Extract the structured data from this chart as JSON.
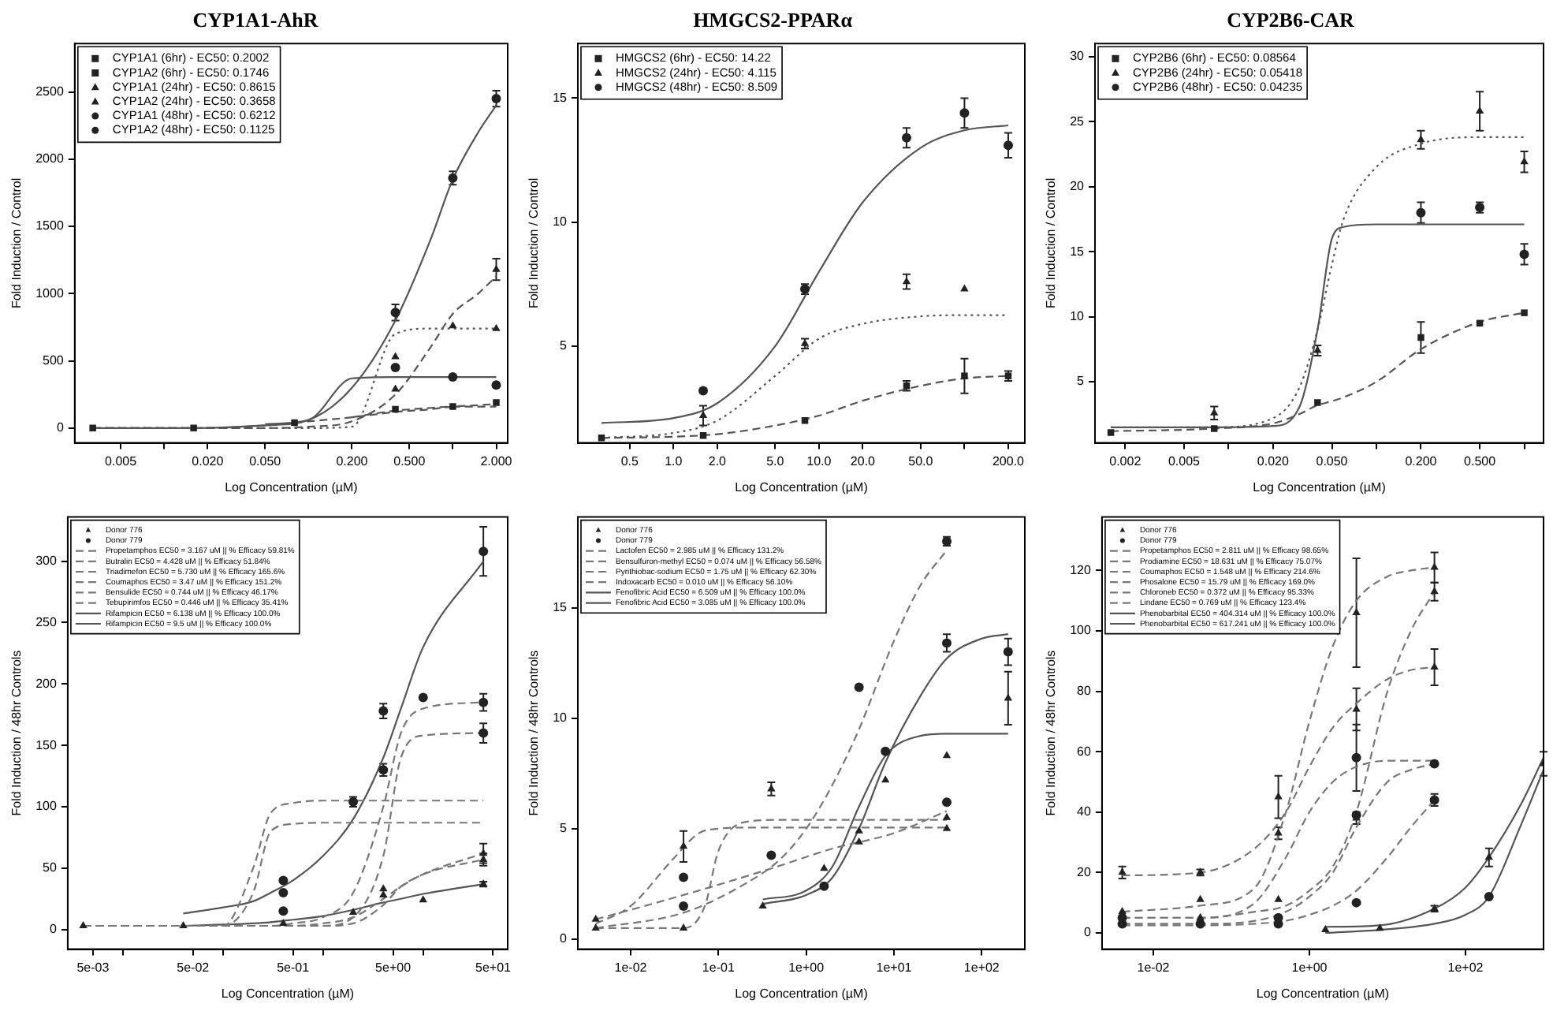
{
  "chart_data": [
    {
      "type": "scatter",
      "title": "CYP1A1-AhR",
      "xlabel": "Log Concentration (µM)",
      "ylabel": "Fold Induction / Control",
      "log": "x",
      "legend": "top left",
      "xlim": [
        0.0024,
        2.4
      ],
      "ylim": [
        -110,
        2860
      ],
      "yticks": [
        0,
        500,
        1000,
        1500,
        2000,
        2500
      ],
      "xticks": [
        {
          "value": 0.005,
          "label": "0.005"
        },
        {
          "value": 0.01,
          "label": null
        },
        {
          "value": 0.02,
          "label": "0.020"
        },
        {
          "value": 0.05,
          "label": "0.050"
        },
        {
          "value": 0.1,
          "label": null
        },
        {
          "value": 0.2,
          "label": "0.200"
        },
        {
          "value": 0.5,
          "label": "0.500"
        },
        {
          "value": 1,
          "label": null
        },
        {
          "value": 2,
          "label": "2.000"
        }
      ],
      "series": [
        {
          "name": "CYP1A1 (6hr) - EC50: 0.2002",
          "marker": "square",
          "color": "#222222",
          "x": [
            0.0032,
            0.016,
            0.08,
            1,
            2
          ],
          "values": [
            0,
            0,
            40,
            160,
            190
          ]
        },
        {
          "name": "CYP1A2 (6hr) - EC50: 0.1746",
          "marker": "square",
          "color": "#222222",
          "x": [
            0.4
          ],
          "values": [
            140
          ]
        },
        {
          "name": "CYP1A1 (24hr) - EC50: 0.8615",
          "marker": "triangle",
          "color": "#222222",
          "x": [
            0.4,
            2
          ],
          "values": [
            290,
            1180
          ],
          "errors": [
            null,
            80
          ]
        },
        {
          "name": "CYP1A2 (24hr) - EC50: 0.3658",
          "marker": "triangle",
          "color": "#222222",
          "x": [
            0.4,
            1,
            2
          ],
          "values": [
            530,
            760,
            740
          ]
        },
        {
          "name": "CYP1A1 (48hr) - EC50: 0.6212",
          "marker": "circle",
          "color": "#222222",
          "x": [
            0.4,
            1,
            2
          ],
          "values": [
            860,
            1860,
            2450
          ],
          "errors": [
            60,
            50,
            60
          ]
        },
        {
          "name": "CYP1A2 (48hr) - EC50: 0.1125",
          "marker": "circle",
          "color": "#222222",
          "x": [
            0.4,
            1,
            2
          ],
          "values": [
            450,
            380,
            320
          ]
        },
        {
          "type": "line",
          "line_style": "dashed",
          "marker": "none",
          "color": "#555555",
          "x": [
            0.0032,
            0.016,
            0.05,
            0.1,
            0.2,
            0.4,
            0.7,
            1,
            1.5,
            2
          ],
          "values": [
            0,
            0,
            20,
            50,
            80,
            120,
            140,
            160,
            170,
            180
          ]
        },
        {
          "type": "line",
          "line_style": "dashed",
          "marker": "none",
          "color": "#555555",
          "x": [
            0.2,
            0.4,
            0.7,
            1,
            1.5,
            2
          ],
          "values": [
            80,
            130,
            150,
            160,
            160,
            160
          ]
        },
        {
          "type": "line",
          "line_style": "dashed",
          "marker": "none",
          "color": "#555555",
          "x": [
            0.0032,
            0.016,
            0.05,
            0.1,
            0.2,
            0.4,
            0.7,
            1,
            1.5,
            2
          ],
          "values": [
            0,
            0,
            0,
            10,
            50,
            250,
            600,
            850,
            1000,
            1130
          ]
        },
        {
          "type": "line",
          "line_style": "dotted",
          "marker": "none",
          "color": "#555555",
          "x": [
            0.0032,
            0.016,
            0.05,
            0.1,
            0.2,
            0.4,
            0.7,
            1,
            1.5,
            2
          ],
          "values": [
            0,
            0,
            0,
            0,
            10,
            700,
            740,
            740,
            740,
            740
          ]
        },
        {
          "type": "line",
          "line_style": "solid",
          "marker": "none",
          "color": "#555555",
          "x": [
            0.0032,
            0.016,
            0.05,
            0.1,
            0.2,
            0.4,
            0.7,
            1,
            1.5,
            2
          ],
          "values": [
            0,
            0,
            20,
            60,
            300,
            800,
            1400,
            1850,
            2200,
            2400
          ]
        },
        {
          "type": "line",
          "line_style": "solid",
          "marker": "none",
          "color": "#555555",
          "x": [
            0.05,
            0.1,
            0.2,
            0.4,
            0.7,
            1,
            1.5,
            2
          ],
          "values": [
            30,
            60,
            370,
            380,
            380,
            380,
            380,
            380
          ]
        }
      ]
    },
    {
      "type": "scatter",
      "title": "HMGCS2-PPARα",
      "xlabel": "Log Concentration (µM)",
      "ylabel": "Fold Induction / Control",
      "log": "x",
      "legend": "top left",
      "xlim": [
        0.22,
        260
      ],
      "ylim": [
        1.1,
        17.2
      ],
      "yticks": [
        5,
        10,
        15
      ],
      "xticks": [
        {
          "value": 0.5,
          "label": "0.5"
        },
        {
          "value": 1,
          "label": "1.0"
        },
        {
          "value": 2,
          "label": "2.0"
        },
        {
          "value": 5,
          "label": "5.0"
        },
        {
          "value": 10,
          "label": "10.0"
        },
        {
          "value": 20,
          "label": "20.0"
        },
        {
          "value": 50,
          "label": "50.0"
        },
        {
          "value": 100,
          "label": null
        },
        {
          "value": 200,
          "label": "200.0"
        }
      ],
      "series": [
        {
          "name": "HMGCS2 (6hr) - EC50: 14.22",
          "marker": "square",
          "color": "#222222",
          "x": [
            0.32,
            1.6,
            8,
            40,
            100,
            200
          ],
          "values": [
            1.3,
            1.4,
            2.0,
            3.4,
            3.8,
            3.8
          ],
          "errors": [
            null,
            null,
            null,
            0.2,
            0.7,
            0.2
          ]
        },
        {
          "name": "HMGCS2 (24hr) - EC50: 4.115",
          "marker": "triangle",
          "color": "#222222",
          "x": [
            1.6,
            8,
            40,
            100
          ],
          "values": [
            2.2,
            5.1,
            7.6,
            7.3
          ],
          "errors": [
            0.4,
            0.2,
            0.3,
            null
          ]
        },
        {
          "name": "HMGCS2 (48hr) - EC50: 8.509",
          "marker": "circle",
          "color": "#222222",
          "x": [
            1.6,
            8,
            40,
            100,
            200
          ],
          "values": [
            3.2,
            7.3,
            13.4,
            14.4,
            13.1
          ],
          "errors": [
            null,
            0.2,
            0.4,
            0.6,
            0.5
          ]
        },
        {
          "type": "line",
          "line_style": "dashed",
          "marker": "none",
          "color": "#555555",
          "x": [
            0.32,
            1,
            2,
            5,
            10,
            20,
            50,
            100,
            200
          ],
          "values": [
            1.3,
            1.35,
            1.45,
            1.8,
            2.2,
            2.8,
            3.4,
            3.7,
            3.8
          ]
        },
        {
          "type": "line",
          "line_style": "dotted",
          "marker": "none",
          "color": "#555555",
          "x": [
            0.32,
            1,
            2,
            5,
            10,
            20,
            50,
            100,
            200
          ],
          "values": [
            1.3,
            1.5,
            2,
            3.8,
            5.3,
            5.9,
            6.2,
            6.25,
            6.25
          ]
        },
        {
          "type": "line",
          "line_style": "solid",
          "marker": "none",
          "color": "#555555",
          "x": [
            0.32,
            1,
            2,
            5,
            10,
            20,
            50,
            100,
            200
          ],
          "values": [
            1.9,
            2.1,
            2.7,
            5,
            8,
            10.8,
            13,
            13.7,
            13.9
          ]
        }
      ]
    },
    {
      "type": "scatter",
      "title": "CYP2B6-CAR",
      "xlabel": "Log Concentration (µM)",
      "ylabel": "Fold Induction / Control",
      "log": "x",
      "legend": "top left",
      "xlim": [
        0.00125,
        1.35
      ],
      "ylim": [
        0.3,
        31
      ],
      "yticks": [
        5,
        10,
        15,
        20,
        25,
        30
      ],
      "xticks": [
        {
          "value": 0.002,
          "label": "0.002"
        },
        {
          "value": 0.005,
          "label": "0.005"
        },
        {
          "value": 0.01,
          "label": null
        },
        {
          "value": 0.02,
          "label": "0.020"
        },
        {
          "value": 0.05,
          "label": "0.050"
        },
        {
          "value": 0.1,
          "label": null
        },
        {
          "value": 0.2,
          "label": "0.200"
        },
        {
          "value": 0.5,
          "label": "0.500"
        },
        {
          "value": 1,
          "label": null
        }
      ],
      "series": [
        {
          "name": "CYP2B6 (6hr) - EC50: 0.08564",
          "marker": "square",
          "color": "#222222",
          "x": [
            0.0016,
            0.008,
            0.04,
            0.2,
            0.5,
            1
          ],
          "values": [
            1.1,
            1.4,
            3.4,
            8.4,
            9.5,
            10.3
          ],
          "errors": [
            null,
            null,
            null,
            1.2,
            null,
            null
          ]
        },
        {
          "name": "CYP2B6 (24hr) - EC50: 0.05418",
          "marker": "triangle",
          "color": "#222222",
          "x": [
            0.008,
            0.04,
            0.2,
            0.5,
            1
          ],
          "values": [
            2.6,
            7.4,
            23.6,
            25.8,
            21.9
          ],
          "errors": [
            0.5,
            0.4,
            0.7,
            1.5,
            0.8
          ]
        },
        {
          "name": "CYP2B6 (48hr) - EC50: 0.04235",
          "marker": "circle",
          "color": "#222222",
          "x": [
            0.2,
            0.5,
            1
          ],
          "values": [
            18.0,
            18.4,
            14.8
          ],
          "errors": [
            0.8,
            0.4,
            0.8
          ]
        },
        {
          "type": "line",
          "line_style": "dashed",
          "marker": "none",
          "color": "#555555",
          "x": [
            0.0016,
            0.008,
            0.02,
            0.03,
            0.04,
            0.05,
            0.06,
            0.1,
            0.2,
            0.5,
            1
          ],
          "values": [
            1.2,
            1.4,
            1.8,
            2.5,
            3.2,
            3.5,
            3.8,
            5,
            7.5,
            9.6,
            10.3
          ]
        },
        {
          "type": "line",
          "line_style": "dotted",
          "marker": "none",
          "color": "#555555",
          "x": [
            0.0016,
            0.008,
            0.02,
            0.03,
            0.04,
            0.05,
            0.06,
            0.1,
            0.2,
            0.5,
            1
          ],
          "values": [
            1.5,
            1.5,
            2.2,
            4.5,
            9,
            14,
            17.5,
            21.5,
            23.3,
            23.8,
            23.8
          ]
        },
        {
          "type": "line",
          "line_style": "solid",
          "marker": "none",
          "color": "#555555",
          "x": [
            0.0016,
            0.008,
            0.02,
            0.03,
            0.04,
            0.05,
            0.06,
            0.1,
            0.2,
            0.5,
            1
          ],
          "values": [
            1.5,
            1.5,
            1.6,
            3,
            9,
            16,
            16.9,
            17.1,
            17.1,
            17.1,
            17.1
          ]
        }
      ]
    },
    {
      "type": "scatter",
      "xlabel": "Log Concentration (µM)",
      "ylabel": "Fold Induction / 48hr Controls",
      "log": "x",
      "legend": "top left",
      "xlim": [
        0.0028,
        70
      ],
      "ylim": [
        -16,
        336
      ],
      "yticks": [
        0,
        50,
        100,
        150,
        200,
        250,
        300
      ],
      "xticks": [
        {
          "value": 0.005,
          "label": "5e-03"
        },
        {
          "value": 0.01,
          "label": null
        },
        {
          "value": 0.05,
          "label": "5e-02"
        },
        {
          "value": 0.1,
          "label": null
        },
        {
          "value": 0.5,
          "label": "5e-01"
        },
        {
          "value": 1,
          "label": null
        },
        {
          "value": 5,
          "label": "5e+00"
        },
        {
          "value": 10,
          "label": null
        },
        {
          "value": 50,
          "label": "5e+01"
        }
      ],
      "series": [
        {
          "name": "Donor 776",
          "marker": "triangle",
          "color": "#222222",
          "x": [
            0.004,
            0.04,
            0.4,
            4,
            40,
            4,
            40,
            2,
            10,
            40
          ],
          "values": [
            3,
            3,
            5,
            33,
            62,
            28,
            57,
            14,
            24,
            37
          ],
          "errors": [
            null,
            null,
            null,
            null,
            8,
            null,
            5,
            null,
            null,
            2
          ]
        },
        {
          "name": "Donor 779",
          "marker": "circle",
          "color": "#222222",
          "x": [
            0.4,
            4,
            40,
            4,
            40,
            0.4,
            2,
            0.4,
            10,
            40
          ],
          "values": [
            15,
            178,
            185,
            130,
            160,
            30,
            104,
            40,
            189,
            308
          ],
          "errors": [
            null,
            6,
            7,
            5,
            8,
            null,
            4,
            null,
            null,
            20
          ]
        },
        {
          "name": "Propetamphos EC50 = 3.167 uM || % Efficacy 59.81%",
          "type": "line",
          "line_style": "dashed",
          "marker": "none",
          "color": "#777777",
          "x": [
            0.004,
            0.04,
            0.1,
            0.2,
            0.3,
            0.5,
            1,
            2,
            4,
            6,
            10,
            40
          ],
          "values": [
            3,
            3,
            3,
            3,
            3,
            5,
            10,
            30,
            100,
            160,
            180,
            185
          ]
        },
        {
          "name": "Butralin EC50 = 4.428 uM || % Efficacy 51.84%",
          "type": "line",
          "line_style": "dashed",
          "marker": "none",
          "color": "#777777",
          "x": [
            0.004,
            0.04,
            0.1,
            0.2,
            0.3,
            0.5,
            1,
            2,
            4,
            6,
            10,
            40
          ],
          "values": [
            3,
            3,
            3,
            3,
            3,
            3,
            3,
            10,
            60,
            140,
            158,
            160
          ]
        },
        {
          "name": "Triadimefon EC50 = 5.730 uM || % Efficacy 165.6%",
          "type": "line",
          "line_style": "dashed",
          "marker": "none",
          "color": "#777777",
          "x": [
            0.004,
            0.04,
            0.1,
            0.2,
            0.3,
            0.5,
            1,
            2,
            4,
            6,
            10,
            40
          ],
          "values": [
            3,
            3,
            3,
            3,
            3,
            3,
            3,
            5,
            20,
            35,
            45,
            62
          ]
        },
        {
          "name": "Coumaphos EC50 = 3.47 uM || % Efficacy 151.2%",
          "type": "line",
          "line_style": "dashed",
          "marker": "none",
          "color": "#777777",
          "x": [
            0.004,
            0.04,
            0.1,
            0.2,
            0.3,
            0.5,
            1,
            2,
            4,
            6,
            10,
            40
          ],
          "values": [
            3,
            3,
            3,
            3,
            3,
            3,
            5,
            10,
            25,
            35,
            45,
            57
          ]
        },
        {
          "name": "Bensulide EC50 = 0.744 uM || % Efficacy 46.17%",
          "type": "line",
          "line_style": "dashed",
          "marker": "none",
          "color": "#777777",
          "x": [
            0.004,
            0.04,
            0.1,
            0.2,
            0.3,
            0.5,
            1,
            2,
            4,
            6,
            10,
            40
          ],
          "values": [
            3,
            3,
            3,
            50,
            95,
            103,
            105,
            105,
            105,
            105,
            105,
            105
          ]
        },
        {
          "name": "Tebupirimfos EC50 = 0.446 uM || % Efficacy 35.41%",
          "type": "line",
          "line_style": "dashed",
          "marker": "none",
          "color": "#777777",
          "x": [
            0.004,
            0.04,
            0.1,
            0.2,
            0.3,
            0.5,
            1,
            2,
            4,
            6,
            10,
            40
          ],
          "values": [
            3,
            3,
            3,
            30,
            80,
            86,
            87,
            87,
            87,
            87,
            87,
            87
          ]
        },
        {
          "name": "Rifampicin EC50 = 6.138 uM || % Efficacy 100.0%",
          "type": "line",
          "line_style": "solid",
          "marker": "none",
          "color": "#555555",
          "x": [
            0.04,
            0.1,
            0.2,
            0.3,
            0.5,
            1,
            2,
            4,
            6,
            10,
            40
          ],
          "values": [
            13,
            18,
            23,
            30,
            40,
            60,
            90,
            140,
            180,
            230,
            300
          ]
        },
        {
          "name": "Rifampicin EC50 = 9.5 uM || % Efficacy 100.0%",
          "type": "line",
          "line_style": "solid",
          "marker": "none",
          "color": "#555555",
          "x": [
            0.04,
            0.1,
            0.2,
            0.3,
            0.5,
            1,
            2,
            4,
            6,
            10,
            40
          ],
          "values": [
            3,
            4,
            5,
            6,
            8,
            11,
            16,
            22,
            25,
            29,
            37
          ]
        }
      ]
    },
    {
      "type": "scatter",
      "xlabel": "Log Concentration (µM)",
      "ylabel": "Fold Induction / 48hr Controls",
      "log": "x",
      "legend": "top left",
      "xlim": [
        0.0025,
        310
      ],
      "ylim": [
        -0.45,
        19.1
      ],
      "yticks": [
        0,
        5,
        10,
        15
      ],
      "xticks": [
        {
          "value": 0.01,
          "label": "1e-02"
        },
        {
          "value": 0.1,
          "label": "1e-01"
        },
        {
          "value": 1,
          "label": "1e+00"
        },
        {
          "value": 10,
          "label": "1e+01"
        },
        {
          "value": 100,
          "label": "1e+02"
        }
      ],
      "series": [
        {
          "name": "Donor 776",
          "marker": "triangle",
          "color": "#222222",
          "x": [
            0.004,
            0.04,
            0.4,
            4,
            40,
            0.004,
            0.04,
            4,
            40,
            0.32,
            1.6,
            8,
            40,
            200
          ],
          "values": [
            0.9,
            4.2,
            6.8,
            4.9,
            5.0,
            0.5,
            0.5,
            4.4,
            5.5,
            1.5,
            3.2,
            7.2,
            8.3,
            10.9
          ],
          "errors": [
            null,
            0.7,
            0.3,
            null,
            null,
            null,
            null,
            null,
            null,
            null,
            null,
            null,
            null,
            1.2
          ]
        },
        {
          "name": "Donor 779",
          "marker": "circle",
          "color": "#222222",
          "x": [
            0.04,
            0.4,
            4,
            40,
            0.04,
            40,
            1.6,
            8,
            40,
            200
          ],
          "values": [
            1.5,
            3.8,
            11.4,
            18.0,
            2.8,
            6.2,
            2.4,
            8.5,
            13.4,
            13.0
          ],
          "errors": [
            null,
            null,
            null,
            0.2,
            null,
            null,
            null,
            null,
            0.4,
            0.6
          ]
        },
        {
          "name": "Lactofen EC50 = 2.985 uM || % Efficacy 131.2%",
          "type": "line",
          "line_style": "dashed",
          "marker": "none",
          "color": "#777777",
          "x": [
            0.004,
            0.04,
            0.2,
            0.5,
            1,
            2,
            4,
            10,
            20,
            40
          ],
          "values": [
            0.5,
            1.2,
            2.5,
            3.6,
            5,
            7,
            9.5,
            13.5,
            16,
            17.6
          ]
        },
        {
          "name": "Bensulfuron-methyl EC50 = 0.074 uM || % Efficacy 56.58%",
          "type": "line",
          "line_style": "dashed",
          "marker": "none",
          "color": "#777777",
          "x": [
            0.004,
            0.01,
            0.03,
            0.06,
            0.1,
            0.2,
            0.5,
            4,
            40
          ],
          "values": [
            0.7,
            1.5,
            3.6,
            4.8,
            5.0,
            5.05,
            5.05,
            5.05,
            5.05
          ]
        },
        {
          "name": "Pyrithiobac-sodium EC50 = 1.75 uM || % Efficacy 62.30%",
          "type": "line",
          "line_style": "dashed",
          "marker": "none",
          "color": "#777777",
          "x": [
            0.004,
            0.04,
            0.4,
            2,
            10,
            40
          ],
          "values": [
            0.9,
            2,
            3.2,
            4.1,
            4.8,
            5.8
          ]
        },
        {
          "name": "Indoxacarb EC50 = 0.010 uM || % Efficacy 56.10%",
          "type": "line",
          "line_style": "dashed",
          "marker": "none",
          "color": "#777777",
          "x": [
            0.004,
            0.04,
            0.07,
            0.1,
            0.2,
            0.5,
            4,
            40
          ],
          "values": [
            0.5,
            0.5,
            1.5,
            4,
            5.3,
            5.4,
            5.4,
            5.4
          ]
        },
        {
          "name": "Fenofibric Acid EC50 = 6.509 uM || % Efficacy 100.0%",
          "type": "line",
          "line_style": "solid",
          "marker": "none",
          "color": "#555555",
          "x": [
            0.32,
            1,
            2,
            4,
            8,
            20,
            40,
            100,
            200
          ],
          "values": [
            1.6,
            2,
            2.8,
            5,
            8,
            11,
            12.7,
            13.6,
            13.8
          ]
        },
        {
          "name": "Fenofibric Acid EC50 = 3.085 uM || % Efficacy 100.0%",
          "type": "line",
          "line_style": "solid",
          "marker": "none",
          "color": "#555555",
          "x": [
            0.32,
            1,
            2,
            4,
            8,
            20,
            40,
            100,
            200
          ],
          "values": [
            1.8,
            2.2,
            3.3,
            6,
            8.3,
            9.2,
            9.3,
            9.3,
            9.3
          ]
        }
      ]
    },
    {
      "type": "scatter",
      "xlabel": "Log Concentration (µM)",
      "ylabel": "Fold Induction / 48hr Controls",
      "log": "x",
      "legend": "top left",
      "xlim": [
        0.0022,
        1000
      ],
      "ylim": [
        -5.4,
        137.7
      ],
      "yticks": [
        0,
        20,
        40,
        60,
        80,
        100,
        120
      ],
      "xticks": [
        {
          "value": 0.01,
          "label": "1e-02"
        },
        {
          "value": 1,
          "label": "1e+00"
        },
        {
          "value": 100,
          "label": "1e+02"
        }
      ],
      "series": [
        {
          "name": "Donor 776",
          "marker": "triangle",
          "color": "#222222",
          "x": [
            0.004,
            0.04,
            0.4,
            4,
            40,
            0.04,
            0.4,
            4,
            40,
            0.004,
            0.04,
            0.4,
            4,
            40,
            1.6,
            8,
            40,
            200,
            1000
          ],
          "values": [
            7,
            11,
            33,
            106,
            121,
            5,
            11,
            38,
            113,
            20,
            20,
            45,
            74,
            88,
            1,
            1.5,
            8,
            25,
            56
          ],
          "errors": [
            null,
            null,
            2,
            18,
            5,
            null,
            null,
            2,
            3,
            2,
            1,
            7,
            7,
            6,
            null,
            null,
            1,
            3,
            4
          ]
        },
        {
          "name": "Donor 779",
          "marker": "circle",
          "color": "#222222",
          "x": [
            0.004,
            0.04,
            0.4,
            4,
            40,
            0.004,
            0.4,
            4,
            40,
            4,
            200
          ],
          "values": [
            3,
            3,
            5,
            39,
            56,
            5,
            3,
            10,
            44,
            58,
            12
          ],
          "errors": [
            null,
            null,
            null,
            null,
            null,
            null,
            null,
            null,
            2,
            11,
            null
          ]
        },
        {
          "name": "Propetamphos EC50 = 2.811 uM || % Efficacy 98.65%",
          "type": "line",
          "line_style": "dashed",
          "marker": "none",
          "color": "#777777",
          "x": [
            0.004,
            0.04,
            0.2,
            0.5,
            1,
            2,
            4,
            10,
            20,
            40
          ],
          "values": [
            3,
            3,
            4,
            7,
            12,
            20,
            35,
            50,
            54,
            56
          ]
        },
        {
          "name": "Prodiamine EC50 = 18.631 uM || % Efficacy 75.07%",
          "type": "line",
          "line_style": "dashed",
          "marker": "none",
          "color": "#777777",
          "x": [
            0.004,
            0.04,
            0.2,
            0.5,
            1,
            2,
            4,
            10,
            20,
            40
          ],
          "values": [
            2.5,
            2.5,
            3,
            4,
            6,
            9,
            14,
            25,
            35,
            44
          ]
        },
        {
          "name": "Coumaphos EC50 = 1.548 uM || % Efficacy 214.6%",
          "type": "line",
          "line_style": "dashed",
          "marker": "none",
          "color": "#777777",
          "x": [
            0.004,
            0.04,
            0.2,
            0.5,
            1,
            2,
            4,
            10,
            20,
            40
          ],
          "values": [
            7,
            9,
            15,
            40,
            70,
            95,
            110,
            118,
            120,
            121
          ]
        },
        {
          "name": "Phosalone EC50 = 15.79 uM || % Efficacy 169.0%",
          "type": "line",
          "line_style": "dashed",
          "marker": "none",
          "color": "#777777",
          "x": [
            0.004,
            0.04,
            0.2,
            0.5,
            1,
            2,
            4,
            10,
            20,
            40
          ],
          "values": [
            5,
            5,
            7,
            9,
            14,
            22,
            40,
            80,
            100,
            113
          ]
        },
        {
          "name": "Chloroneb EC50 = 0.372 uM || % Efficacy 95.33%",
          "type": "line",
          "line_style": "dashed",
          "marker": "none",
          "color": "#777777",
          "x": [
            0.004,
            0.04,
            0.2,
            0.5,
            1,
            2,
            4,
            10,
            20,
            40
          ],
          "values": [
            5,
            5,
            10,
            25,
            40,
            50,
            55,
            57,
            57,
            57
          ]
        },
        {
          "name": "Lindane EC50 = 0.769 uM || % Efficacy 123.4%",
          "type": "line",
          "line_style": "dashed",
          "marker": "none",
          "color": "#777777",
          "x": [
            0.004,
            0.04,
            0.2,
            0.5,
            1,
            2,
            4,
            10,
            20,
            40
          ],
          "values": [
            19,
            20,
            28,
            40,
            55,
            68,
            76,
            84,
            87,
            88
          ]
        },
        {
          "name": "Phenobarbital EC50 = 404.314 uM || % Efficacy 100.0%",
          "type": "line",
          "line_style": "solid",
          "marker": "none",
          "color": "#555555",
          "x": [
            1.6,
            8,
            40,
            100,
            200,
            500,
            1000
          ],
          "values": [
            2,
            2.5,
            8,
            15,
            25,
            42,
            58
          ]
        },
        {
          "name": "Phenobarbital EC50 = 617.241 uM || % Efficacy 100.0%",
          "type": "line",
          "line_style": "solid",
          "marker": "none",
          "color": "#555555",
          "x": [
            1.6,
            8,
            40,
            100,
            200,
            500,
            1000
          ],
          "values": [
            0,
            1,
            3,
            6,
            12,
            35,
            54
          ]
        }
      ]
    }
  ]
}
